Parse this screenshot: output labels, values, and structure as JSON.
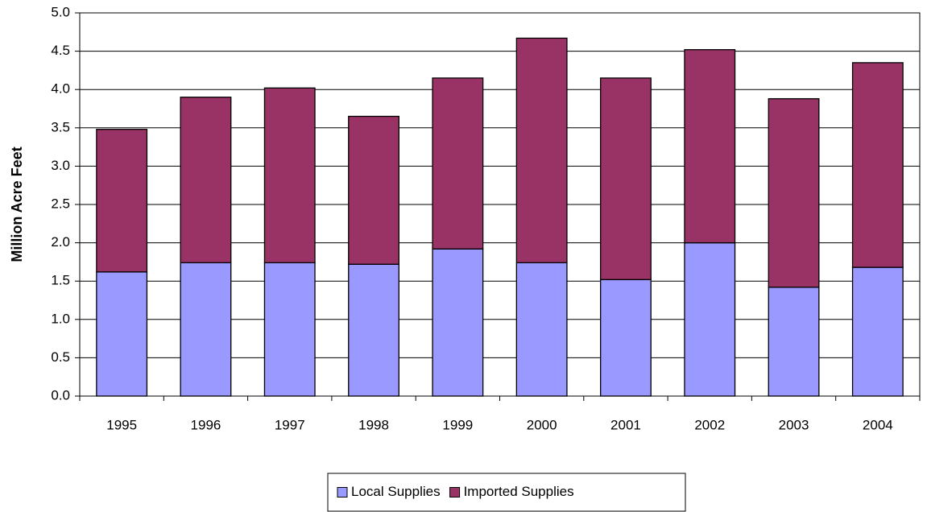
{
  "chart_data": {
    "type": "stacked_bar",
    "y_label": "Million Acre Feet",
    "categories": [
      "1995",
      "1996",
      "1997",
      "1998",
      "1999",
      "2000",
      "2001",
      "2002",
      "2003",
      "2004"
    ],
    "series": [
      {
        "name": "Local Supplies",
        "color": "#9999ff",
        "values": [
          1.62,
          1.74,
          1.74,
          1.72,
          1.92,
          1.74,
          1.52,
          2.0,
          1.42,
          1.68
        ]
      },
      {
        "name": "Imported Supplies",
        "color": "#993366",
        "values": [
          1.86,
          2.16,
          2.28,
          1.93,
          2.23,
          2.93,
          2.63,
          2.52,
          2.46,
          2.67
        ]
      }
    ],
    "ylim": [
      0,
      5
    ],
    "yticks": [
      {
        "value": 0,
        "label": "0.0"
      },
      {
        "value": 0.5,
        "label": "0.5"
      },
      {
        "value": 1,
        "label": "1.0"
      },
      {
        "value": 1.5,
        "label": "1.5"
      },
      {
        "value": 2,
        "label": "2.0"
      },
      {
        "value": 2.5,
        "label": "2.5"
      },
      {
        "value": 3,
        "label": "3.0"
      },
      {
        "value": 3.5,
        "label": "3.5"
      },
      {
        "value": 4,
        "label": "4.0"
      },
      {
        "value": 4.5,
        "label": "4.5"
      },
      {
        "value": 5,
        "label": "5.0"
      }
    ],
    "grid": true,
    "legend": "bottom"
  }
}
